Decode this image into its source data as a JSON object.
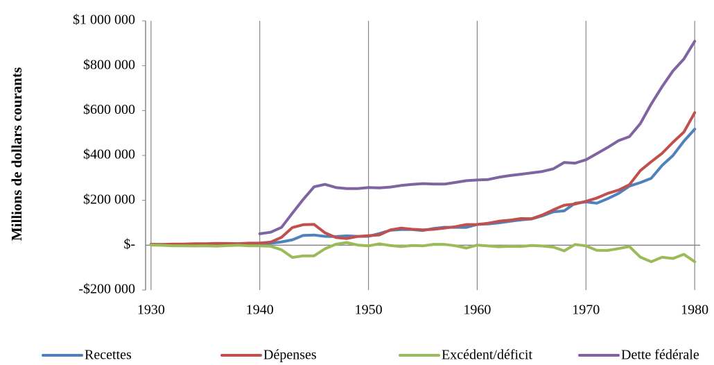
{
  "chart_data": {
    "type": "line",
    "ylabel": "Millions de dollars courants",
    "x": [
      1930,
      1931,
      1932,
      1933,
      1934,
      1935,
      1936,
      1937,
      1938,
      1939,
      1940,
      1941,
      1942,
      1943,
      1944,
      1945,
      1946,
      1947,
      1948,
      1949,
      1950,
      1951,
      1952,
      1953,
      1954,
      1955,
      1956,
      1957,
      1958,
      1959,
      1960,
      1961,
      1962,
      1963,
      1964,
      1965,
      1966,
      1967,
      1968,
      1969,
      1970,
      1971,
      1972,
      1973,
      1974,
      1975,
      1976,
      1977,
      1978,
      1979,
      1980
    ],
    "xlim": [
      1929.5,
      1980.5
    ],
    "xticks": [
      1930,
      1940,
      1950,
      1960,
      1970,
      1980
    ],
    "ylim": [
      -200000,
      1000000
    ],
    "yticks": [
      {
        "value": -200000,
        "label": "-$200 000"
      },
      {
        "value": 0,
        "label": "$-"
      },
      {
        "value": 200000,
        "label": "$200 000"
      },
      {
        "value": 400000,
        "label": "$400 000"
      },
      {
        "value": 600000,
        "label": "$600 000"
      },
      {
        "value": 800000,
        "label": "$800 000"
      },
      {
        "value": 1000000,
        "label": "$1 000 000"
      }
    ],
    "grid": "x",
    "legend": "bottom",
    "series": [
      {
        "name": "Recettes",
        "color": "#4f81bd",
        "values": [
          4058,
          3116,
          1924,
          1997,
          2955,
          3609,
          3923,
          5387,
          6751,
          6295,
          6548,
          8712,
          14634,
          24001,
          43747,
          45159,
          39296,
          38514,
          41560,
          39415,
          39443,
          51616,
          66167,
          69608,
          69701,
          65451,
          74587,
          79990,
          79636,
          79249,
          92492,
          94388,
          99676,
          106560,
          112613,
          116817,
          130835,
          148822,
          152973,
          186882,
          192807,
          187139,
          207309,
          230799,
          263224,
          279090,
          298060,
          355559,
          399561,
          463302,
          517112
        ]
      },
      {
        "name": "Dépenses",
        "color": "#c0504d",
        "values": [
          3320,
          3577,
          4659,
          4598,
          6541,
          6412,
          8228,
          7580,
          6840,
          9141,
          9468,
          13653,
          35137,
          78555,
          91304,
          92712,
          55232,
          34496,
          29764,
          38835,
          42562,
          45514,
          67686,
          76101,
          70855,
          68444,
          70640,
          76578,
          82405,
          92098,
          92191,
          97723,
          106821,
          111316,
          118528,
          118228,
          134532,
          157464,
          178134,
          183640,
          195649,
          210172,
          230681,
          245707,
          269359,
          332332,
          371792,
          409218,
          458746,
          504028,
          590941
        ]
      },
      {
        "name": "Excédent/déficit",
        "color": "#9bbb59",
        "values": [
          738,
          -461,
          -2735,
          -2601,
          -3586,
          -2803,
          -4305,
          -2193,
          -89,
          -2846,
          -2920,
          -4941,
          -20503,
          -54554,
          -47557,
          -47553,
          -15936,
          4018,
          11796,
          580,
          -3119,
          6102,
          -1519,
          -6493,
          -1154,
          -2993,
          3947,
          3412,
          -2769,
          -12849,
          301,
          -3335,
          -7146,
          -4756,
          -5915,
          -1411,
          -3698,
          -8643,
          -25161,
          3242,
          -2842,
          -23033,
          -23373,
          -14908,
          -6135,
          -53242,
          -73732,
          -53659,
          -59185,
          -40726,
          -73830
        ]
      },
      {
        "name": "Dette fédérale",
        "color": "#8064a2",
        "values": [
          null,
          null,
          null,
          null,
          null,
          null,
          null,
          null,
          null,
          null,
          50696,
          57531,
          79200,
          142648,
          204079,
          260123,
          270991,
          257149,
          252031,
          252610,
          256853,
          255288,
          259097,
          265963,
          270812,
          274366,
          272693,
          272252,
          279666,
          287465,
          290525,
          292648,
          302928,
          310324,
          316059,
          322318,
          328498,
          340445,
          368685,
          365769,
          380921,
          408176,
          435936,
          466291,
          483893,
          541925,
          628970,
          706398,
          776602,
          829467,
          909041
        ]
      }
    ]
  }
}
